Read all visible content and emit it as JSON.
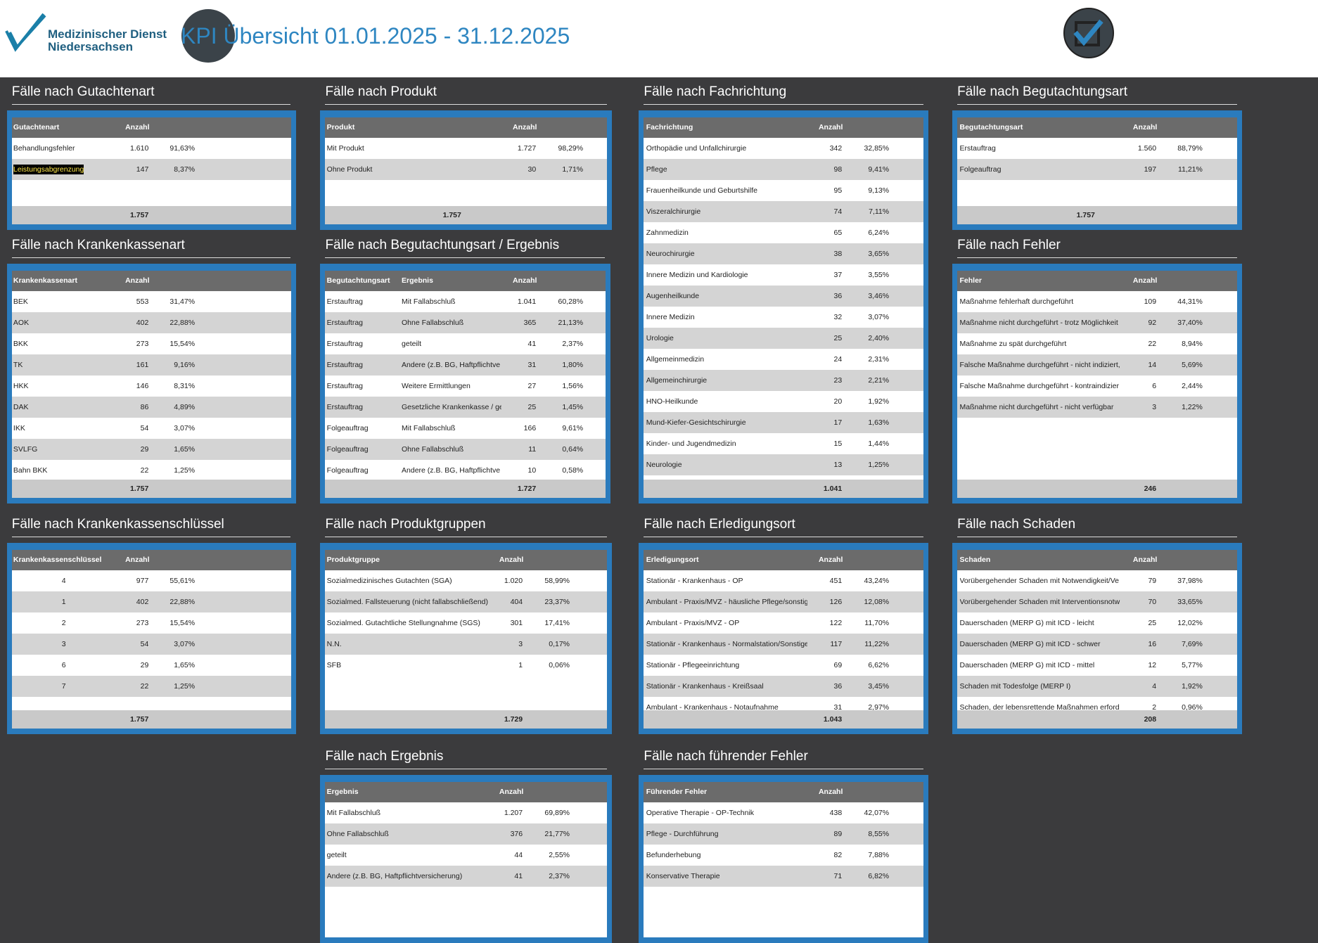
{
  "header": {
    "logo_line1": "Medizinischer Dienst",
    "logo_line2": "Niedersachsen",
    "title": "KPI Übersicht 01.01.2025 - 31.12.2025"
  },
  "panels": [
    {
      "title": "Fälle nach Gutachtenart",
      "columns": [
        "Gutachtenart",
        "Anzahl"
      ],
      "rows": [
        [
          "Behandlungsfehler",
          "1.610",
          "91,63%"
        ],
        [
          "Leistungsabgrenzung",
          "147",
          "8,37%"
        ]
      ],
      "total": "1.757"
    },
    {
      "title": "Fälle nach Produkt",
      "columns": [
        "Produkt",
        "Anzahl"
      ],
      "rows": [
        [
          "Mit Produkt",
          "1.727",
          "98,29%"
        ],
        [
          "Ohne Produkt",
          "30",
          "1,71%"
        ]
      ],
      "total": "1.757"
    },
    {
      "title": "Fälle nach Fachrichtung",
      "columns": [
        "Fachrichtung",
        "Anzahl"
      ],
      "rows": [
        [
          "Orthopädie und Unfallchirurgie",
          "342",
          "32,85%"
        ],
        [
          "Pflege",
          "98",
          "9,41%"
        ],
        [
          "Frauenheilkunde und Geburtshilfe",
          "95",
          "9,13%"
        ],
        [
          "Viszeralchirurgie",
          "74",
          "7,11%"
        ],
        [
          "Zahnmedizin",
          "65",
          "6,24%"
        ],
        [
          "Neurochirurgie",
          "38",
          "3,65%"
        ],
        [
          "Innere Medizin und Kardiologie",
          "37",
          "3,55%"
        ],
        [
          "Augenheilkunde",
          "36",
          "3,46%"
        ],
        [
          "Innere Medizin",
          "32",
          "3,07%"
        ],
        [
          "Urologie",
          "25",
          "2,40%"
        ],
        [
          "Allgemeinmedizin",
          "24",
          "2,31%"
        ],
        [
          "Allgemeinchirurgie",
          "23",
          "2,21%"
        ],
        [
          "HNO-Heilkunde",
          "20",
          "1,92%"
        ],
        [
          "Mund-Kiefer-Gesichtschirurgie",
          "17",
          "1,63%"
        ],
        [
          "Kinder- und Jugendmedizin",
          "15",
          "1,44%"
        ],
        [
          "Neurologie",
          "13",
          "1,25%"
        ]
      ],
      "total": "1.041"
    },
    {
      "title": "Fälle nach Begutachtungsart",
      "columns": [
        "Begutachtungsart",
        "Anzahl"
      ],
      "rows": [
        [
          "Erstauftrag",
          "1.560",
          "88,79%"
        ],
        [
          "Folgeauftrag",
          "197",
          "11,21%"
        ]
      ],
      "total": "1.757"
    },
    {
      "title": "Fälle nach Krankenkassenart",
      "columns": [
        "Krankenkassenart",
        "Anzahl"
      ],
      "rows": [
        [
          "BEK",
          "553",
          "31,47%"
        ],
        [
          "AOK",
          "402",
          "22,88%"
        ],
        [
          "BKK",
          "273",
          "15,54%"
        ],
        [
          "TK",
          "161",
          "9,16%"
        ],
        [
          "HKK",
          "146",
          "8,31%"
        ],
        [
          "DAK",
          "86",
          "4,89%"
        ],
        [
          "IKK",
          "54",
          "3,07%"
        ],
        [
          "SVLFG",
          "29",
          "1,65%"
        ],
        [
          "Bahn BKK",
          "22",
          "1,25%"
        ]
      ],
      "total": "1.757"
    },
    {
      "title": "Fälle nach Begutachtungsart / Ergebnis",
      "columns": [
        "Begutachtungsart",
        "Ergebnis",
        "Anzahl"
      ],
      "rows": [
        [
          "Erstauftrag",
          "Mit Fallabschluß",
          "1.041",
          "60,28%"
        ],
        [
          "Erstauftrag",
          "Ohne Fallabschluß",
          "365",
          "21,13%"
        ],
        [
          "Erstauftrag",
          "geteilt",
          "41",
          "2,37%"
        ],
        [
          "Erstauftrag",
          "Andere (z.B. BG, Haftpflichtve",
          "31",
          "1,80%"
        ],
        [
          "Erstauftrag",
          "Weitere Ermittlungen",
          "27",
          "1,56%"
        ],
        [
          "Erstauftrag",
          "Gesetzliche Krankenkasse / ge",
          "25",
          "1,45%"
        ],
        [
          "Folgeauftrag",
          "Mit Fallabschluß",
          "166",
          "9,61%"
        ],
        [
          "Folgeauftrag",
          "Ohne Fallabschluß",
          "11",
          "0,64%"
        ],
        [
          "Folgeauftrag",
          "Andere (z.B. BG, Haftpflichtve",
          "10",
          "0,58%"
        ]
      ],
      "total": "1.727"
    },
    {
      "title": "Fälle nach Fehler",
      "columns": [
        "Fehler",
        "Anzahl"
      ],
      "rows": [
        [
          "Maßnahme fehlerhaft durchgeführt",
          "109",
          "44,31%"
        ],
        [
          "Maßnahme nicht durchgeführt  - trotz Möglichkeit",
          "92",
          "37,40%"
        ],
        [
          "Maßnahme zu spät durchgeführt",
          "22",
          "8,94%"
        ],
        [
          "Falsche Maßnahme durchgeführt - nicht indiziert,",
          "14",
          "5,69%"
        ],
        [
          "Falsche Maßnahme durchgeführt - kontraindizier",
          "6",
          "2,44%"
        ],
        [
          "Maßnahme nicht durchgeführt  - nicht verfügbar",
          "3",
          "1,22%"
        ]
      ],
      "total": "246"
    },
    {
      "title": "Fälle nach Krankenkassenschlüssel",
      "columns": [
        "Krankenkassenschlüssel",
        "Anzahl"
      ],
      "rows": [
        [
          "4",
          "977",
          "55,61%"
        ],
        [
          "1",
          "402",
          "22,88%"
        ],
        [
          "2",
          "273",
          "15,54%"
        ],
        [
          "3",
          "54",
          "3,07%"
        ],
        [
          "6",
          "29",
          "1,65%"
        ],
        [
          "7",
          "22",
          "1,25%"
        ]
      ],
      "total": "1.757"
    },
    {
      "title": "Fälle nach Produktgruppen",
      "columns": [
        "Produktgruppe",
        "Anzahl"
      ],
      "rows": [
        [
          "Sozialmedizinisches Gutachten (SGA)",
          "1.020",
          "58,99%"
        ],
        [
          "Sozialmed. Fallsteuerung (nicht fallabschließend)",
          "404",
          "23,37%"
        ],
        [
          "Sozialmed. Gutachtliche Stellungnahme (SGS)",
          "301",
          "17,41%"
        ],
        [
          "N.N.",
          "3",
          "0,17%"
        ],
        [
          "SFB",
          "1",
          "0,06%"
        ]
      ],
      "total": "1.729"
    },
    {
      "title": "Fälle nach Erledigungsort",
      "columns": [
        "Erledigungsort",
        "Anzahl"
      ],
      "rows": [
        [
          "Stationär - Krankenhaus - OP",
          "451",
          "43,24%"
        ],
        [
          "Ambulant - Praxis/MVZ - häusliche Pflege/sonstig",
          "126",
          "12,08%"
        ],
        [
          "Ambulant - Praxis/MVZ - OP",
          "122",
          "11,70%"
        ],
        [
          "Stationär - Krankenhaus - Normalstation/Sonstige",
          "117",
          "11,22%"
        ],
        [
          "Stationär - Pflegeeinrichtung",
          "69",
          "6,62%"
        ],
        [
          "Stationär - Krankenhaus - Kreißsaal",
          "36",
          "3,45%"
        ],
        [
          "Ambulant - Krankenhaus - Notaufnahme",
          "31",
          "2,97%"
        ]
      ],
      "total": "1.043"
    },
    {
      "title": "Fälle nach Schaden",
      "columns": [
        "Schaden",
        "Anzahl"
      ],
      "rows": [
        [
          "Vorübergehender Schaden mit Notwendigkeit/Ve",
          "79",
          "37,98%"
        ],
        [
          "Vorübergehender Schaden mit Interventionsnotw",
          "70",
          "33,65%"
        ],
        [
          "Dauerschaden (MERP G) mit ICD - leicht",
          "25",
          "12,02%"
        ],
        [
          "Dauerschaden (MERP G) mit ICD - schwer",
          "16",
          "7,69%"
        ],
        [
          "Dauerschaden (MERP G) mit ICD - mittel",
          "12",
          "5,77%"
        ],
        [
          "Schaden mit Todesfolge (MERP I)",
          "4",
          "1,92%"
        ],
        [
          "Schaden, der lebensrettende Maßnahmen erford",
          "2",
          "0,96%"
        ]
      ],
      "total": "208"
    },
    {
      "title": "Fälle nach Ergebnis",
      "columns": [
        "Ergebnis",
        "Anzahl"
      ],
      "rows": [
        [
          "Mit Fallabschluß",
          "1.207",
          "69,89%"
        ],
        [
          "Ohne Fallabschluß",
          "376",
          "21,77%"
        ],
        [
          "geteilt",
          "44",
          "2,55%"
        ],
        [
          "Andere (z.B. BG, Haftpflichtversicherung)",
          "41",
          "2,37%"
        ]
      ]
    },
    {
      "title": "Fälle nach führender Fehler",
      "columns": [
        "Führender Fehler",
        "Anzahl"
      ],
      "rows": [
        [
          "Operative Therapie - OP-Technik",
          "438",
          "42,07%"
        ],
        [
          "Pflege - Durchführung",
          "89",
          "8,55%"
        ],
        [
          "Befunderhebung",
          "82",
          "7,88%"
        ],
        [
          "Konservative Therapie",
          "71",
          "6,82%"
        ]
      ]
    }
  ]
}
